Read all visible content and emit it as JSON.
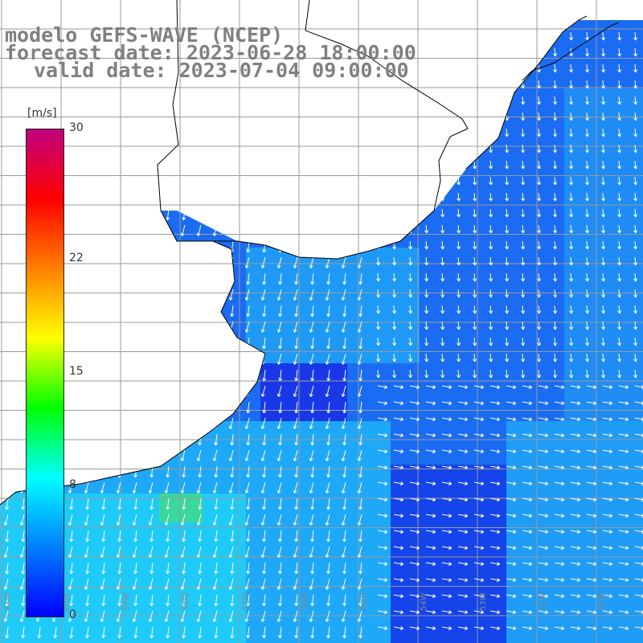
{
  "title": {
    "line1": "modelo GEFS-WAVE (NCEP)",
    "line2": "forecast date: 2023-06-28 18:00:00",
    "line3": "valid date: 2023-07-04 09:00:00"
  },
  "colorbar": {
    "unit": "[m/s]",
    "ticks": [
      {
        "label": "30",
        "value": 30
      },
      {
        "label": "22",
        "value": 22
      },
      {
        "label": "15",
        "value": 15
      },
      {
        "label": "8",
        "value": 8
      },
      {
        "label": "0",
        "value": 0
      }
    ],
    "colors": [
      "#0000ff",
      "#0080ff",
      "#00ffff",
      "#00ff00",
      "#ffff00",
      "#ff8000",
      "#ff0000",
      "#c0007f"
    ]
  },
  "map": {
    "longitude_labels": [
      "61W",
      "60W",
      "59W",
      "58W",
      "57W",
      "56W",
      "55W",
      "54W",
      "53W",
      "52W",
      "51W",
      "50W"
    ],
    "colors": {
      "ocean_dark": "#1a4cf0",
      "ocean_mid": "#1e8cf4",
      "ocean_light": "#1ec8f8",
      "land": "#ffffff",
      "grid": "#9a9a9a",
      "coast": "#000000"
    }
  }
}
